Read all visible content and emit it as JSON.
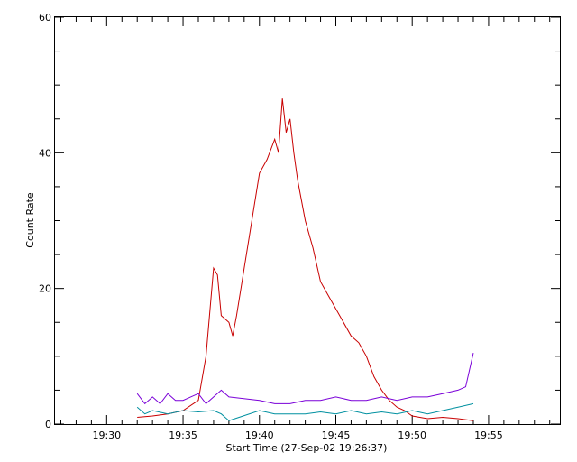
{
  "chart_data": {
    "type": "line",
    "title": "",
    "xlabel": "Start Time (27-Sep-02 19:26:37)",
    "ylabel": "Count Rate",
    "x_unit": "time (HH:MM)",
    "xlim": [
      "19:26:37",
      "19:59:40"
    ],
    "ylim": [
      0,
      60
    ],
    "x_tick_labels": [
      "19:30",
      "19:35",
      "19:40",
      "19:45",
      "19:50",
      "19:55"
    ],
    "y_tick_labels": [
      "0",
      "20",
      "40",
      "60"
    ],
    "grid": false,
    "legend": "none",
    "series": [
      {
        "color": "#c80000",
        "x": [
          "19:32:00",
          "19:33:00",
          "19:34:00",
          "19:35:00",
          "19:36:00",
          "19:36:30",
          "19:37:00",
          "19:37:15",
          "19:37:30",
          "19:38:00",
          "19:38:15",
          "19:38:30",
          "19:40:00",
          "19:40:30",
          "19:41:00",
          "19:41:15",
          "19:41:30",
          "19:41:45",
          "19:42:00",
          "19:42:15",
          "19:42:30",
          "19:43:00",
          "19:43:15",
          "19:43:30",
          "19:44:00",
          "19:44:30",
          "19:45:00",
          "19:45:30",
          "19:46:00",
          "19:46:30",
          "19:47:00",
          "19:47:30",
          "19:48:00",
          "19:48:30",
          "19:49:00",
          "19:49:30",
          "19:50:00",
          "19:51:00",
          "19:52:00",
          "19:53:00",
          "19:54:00"
        ],
        "values": [
          1.0,
          1.2,
          1.5,
          2.0,
          3.5,
          10,
          23,
          22,
          16,
          15,
          13,
          16,
          37,
          39,
          42,
          40,
          48,
          43,
          45,
          40,
          36,
          30,
          28,
          26,
          21,
          19,
          17,
          15,
          13,
          12,
          10,
          7,
          5,
          3.5,
          2.5,
          2,
          1.2,
          0.8,
          1.0,
          0.8,
          0.5
        ]
      },
      {
        "color": "#7a00d8",
        "x": [
          "19:32:00",
          "19:32:30",
          "19:33:00",
          "19:33:30",
          "19:34:00",
          "19:34:30",
          "19:35:00",
          "19:35:30",
          "19:36:00",
          "19:36:30",
          "19:37:00",
          "19:37:30",
          "19:38:00",
          "19:40:00",
          "19:41:00",
          "19:42:00",
          "19:43:00",
          "19:44:00",
          "19:45:00",
          "19:46:00",
          "19:47:00",
          "19:48:00",
          "19:49:00",
          "19:50:00",
          "19:51:00",
          "19:52:00",
          "19:53:00",
          "19:53:30",
          "19:54:00"
        ],
        "values": [
          4.5,
          3,
          4,
          3,
          4.5,
          3.5,
          3.5,
          4,
          4.5,
          3,
          4,
          5,
          4,
          3.5,
          3,
          3,
          3.5,
          3.5,
          4,
          3.5,
          3.5,
          4,
          3.5,
          4,
          4,
          4.5,
          5,
          5.5,
          10.5
        ]
      },
      {
        "color": "#0090a0",
        "x": [
          "19:32:00",
          "19:32:30",
          "19:33:00",
          "19:34:00",
          "19:35:00",
          "19:36:00",
          "19:37:00",
          "19:37:30",
          "19:38:00",
          "19:40:00",
          "19:41:00",
          "19:42:00",
          "19:43:00",
          "19:44:00",
          "19:45:00",
          "19:46:00",
          "19:47:00",
          "19:48:00",
          "19:49:00",
          "19:50:00",
          "19:51:00",
          "19:52:00",
          "19:53:00",
          "19:54:00"
        ],
        "values": [
          2.5,
          1.5,
          2,
          1.5,
          2,
          1.8,
          2,
          1.5,
          0.5,
          2,
          1.5,
          1.5,
          1.5,
          1.8,
          1.5,
          2,
          1.5,
          1.8,
          1.5,
          2,
          1.5,
          2,
          2.5,
          3
        ]
      }
    ]
  }
}
